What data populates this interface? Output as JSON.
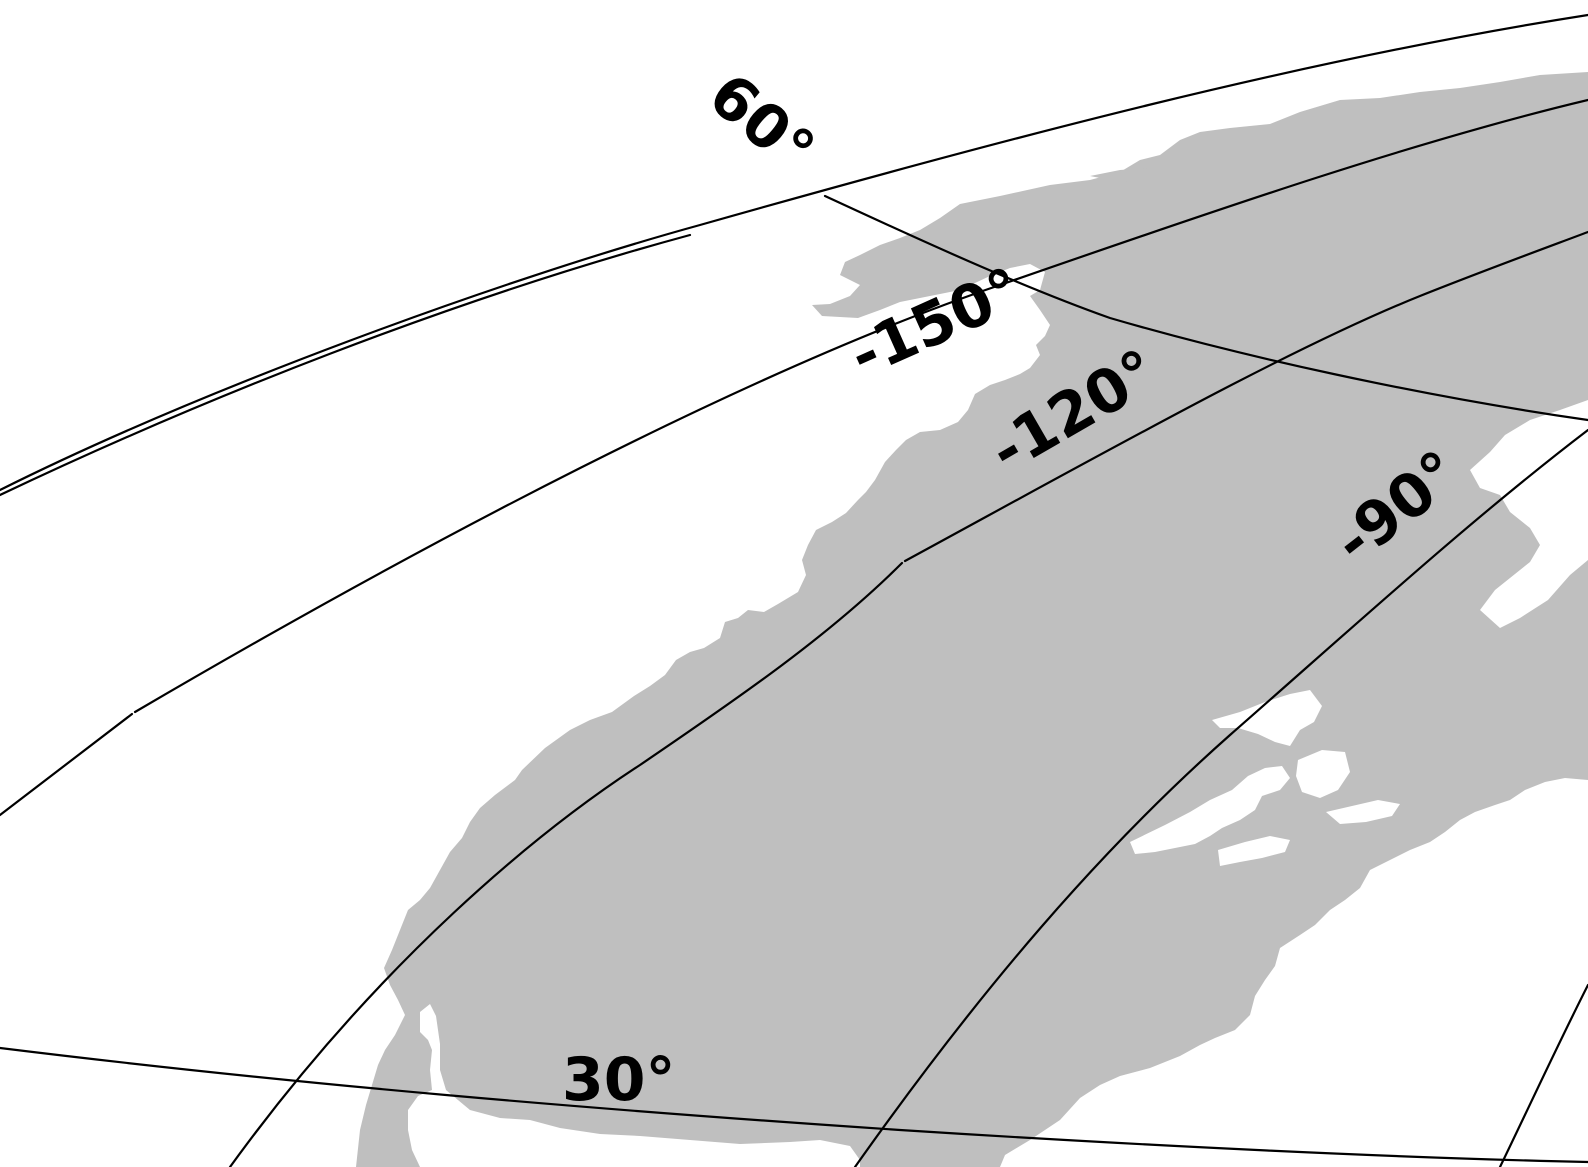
{
  "map": {
    "colors": {
      "background": "#ffffff",
      "land": "#bfbfbf",
      "graticule": "#000000",
      "labels": "#000000"
    },
    "graticule_labels": {
      "lat_60": "60°",
      "lat_30": "30°",
      "lon_minus150": "-150°",
      "lon_minus120": "-120°",
      "lon_minus90": "-90°"
    }
  }
}
